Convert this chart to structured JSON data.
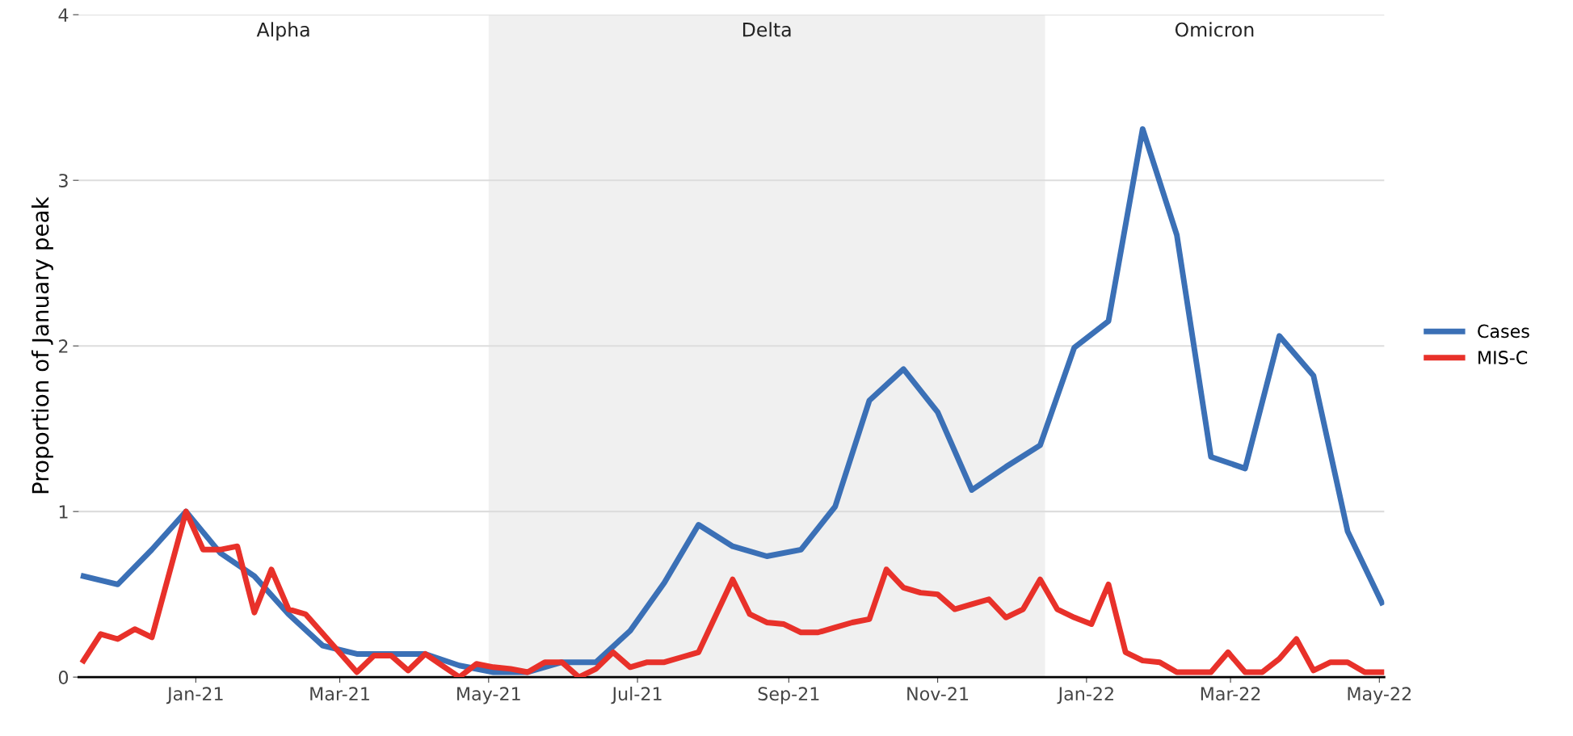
{
  "chart_data": {
    "type": "line",
    "ylabel": "Proportion of January peak",
    "xlim": [
      "2020-11-14",
      "2022-05-03"
    ],
    "xticks": [
      {
        "value": "2021-01-01",
        "label": "Jan-21"
      },
      {
        "value": "2021-03-01",
        "label": "Mar-21"
      },
      {
        "value": "2021-05-01",
        "label": "May-21"
      },
      {
        "value": "2021-07-01",
        "label": "Jul-21"
      },
      {
        "value": "2021-09-01",
        "label": "Sep-21"
      },
      {
        "value": "2021-11-01",
        "label": "Nov-21"
      },
      {
        "value": "2022-01-01",
        "label": "Jan-22"
      },
      {
        "value": "2022-03-01",
        "label": "Mar-22"
      },
      {
        "value": "2022-05-01",
        "label": "May-22"
      }
    ],
    "ylim": [
      0,
      4
    ],
    "yticks": [
      0,
      1,
      2,
      3,
      4
    ],
    "grid": "y",
    "legend": "right",
    "line_style": "solid",
    "marker": "none",
    "bands": [
      {
        "axis": "x",
        "from": "2021-05-01",
        "to": "2021-12-15",
        "label": "Delta",
        "color": "#f0f0f0"
      }
    ],
    "annotations": [
      "Alpha",
      "Omicron"
    ],
    "series": [
      {
        "name": "Cases",
        "color": "#3b70b6",
        "x": [
          "2020-11-16",
          "2020-11-30",
          "2020-12-14",
          "2020-12-28",
          "2021-01-11",
          "2021-01-25",
          "2021-02-08",
          "2021-02-22",
          "2021-03-08",
          "2021-03-22",
          "2021-04-05",
          "2021-04-19",
          "2021-05-03",
          "2021-05-17",
          "2021-05-31",
          "2021-06-14",
          "2021-06-28",
          "2021-07-12",
          "2021-07-26",
          "2021-08-09",
          "2021-08-23",
          "2021-09-06",
          "2021-09-20",
          "2021-10-04",
          "2021-10-18",
          "2021-11-01",
          "2021-11-15",
          "2021-11-29",
          "2021-12-13",
          "2021-12-27",
          "2022-01-10",
          "2022-01-24",
          "2022-02-07",
          "2022-02-21",
          "2022-03-07",
          "2022-03-21",
          "2022-04-04",
          "2022-04-18",
          "2022-05-02"
        ],
        "values": [
          0.61,
          0.56,
          0.77,
          1.0,
          0.75,
          0.61,
          0.38,
          0.19,
          0.14,
          0.14,
          0.14,
          0.07,
          0.03,
          0.03,
          0.09,
          0.09,
          0.28,
          0.57,
          0.92,
          0.79,
          0.73,
          0.77,
          1.03,
          1.67,
          1.86,
          1.6,
          1.13,
          1.27,
          1.4,
          1.99,
          2.15,
          3.31,
          2.67,
          1.33,
          1.26,
          2.06,
          1.82,
          0.88,
          0.45
        ]
      },
      {
        "name": "MIS-C",
        "color": "#e8312a",
        "x": [
          "2020-11-16",
          "2020-11-23",
          "2020-11-30",
          "2020-12-07",
          "2020-12-14",
          "2020-12-28",
          "2021-01-04",
          "2021-01-11",
          "2021-01-18",
          "2021-01-25",
          "2021-02-01",
          "2021-02-08",
          "2021-02-15",
          "2021-03-08",
          "2021-03-15",
          "2021-03-22",
          "2021-03-29",
          "2021-04-05",
          "2021-04-12",
          "2021-04-19",
          "2021-04-26",
          "2021-05-03",
          "2021-05-10",
          "2021-05-17",
          "2021-05-24",
          "2021-05-31",
          "2021-06-07",
          "2021-06-14",
          "2021-06-21",
          "2021-06-28",
          "2021-07-05",
          "2021-07-12",
          "2021-07-19",
          "2021-07-26",
          "2021-08-09",
          "2021-08-16",
          "2021-08-23",
          "2021-08-30",
          "2021-09-06",
          "2021-09-13",
          "2021-09-20",
          "2021-09-27",
          "2021-10-04",
          "2021-10-11",
          "2021-10-18",
          "2021-10-25",
          "2021-11-01",
          "2021-11-08",
          "2021-11-15",
          "2021-11-22",
          "2021-11-29",
          "2021-12-06",
          "2021-12-13",
          "2021-12-20",
          "2021-12-27",
          "2022-01-03",
          "2022-01-10",
          "2022-01-17",
          "2022-01-24",
          "2022-01-31",
          "2022-02-07",
          "2022-02-21",
          "2022-02-28",
          "2022-03-07",
          "2022-03-14",
          "2022-03-21",
          "2022-03-28",
          "2022-04-04",
          "2022-04-11",
          "2022-04-18",
          "2022-04-25",
          "2022-05-02"
        ],
        "values": [
          0.1,
          0.26,
          0.23,
          0.29,
          0.24,
          1.0,
          0.77,
          0.77,
          0.79,
          0.39,
          0.65,
          0.41,
          0.38,
          0.03,
          0.13,
          0.13,
          0.04,
          0.14,
          0.07,
          0.0,
          0.08,
          0.06,
          0.05,
          0.03,
          0.09,
          0.09,
          0.0,
          0.05,
          0.15,
          0.06,
          0.09,
          0.09,
          0.12,
          0.15,
          0.59,
          0.38,
          0.33,
          0.32,
          0.27,
          0.27,
          0.3,
          0.33,
          0.35,
          0.65,
          0.54,
          0.51,
          0.5,
          0.41,
          0.44,
          0.47,
          0.36,
          0.41,
          0.59,
          0.41,
          0.36,
          0.32,
          0.56,
          0.15,
          0.1,
          0.09,
          0.03,
          0.03,
          0.15,
          0.03,
          0.03,
          0.11,
          0.23,
          0.04,
          0.09,
          0.09,
          0.03,
          0.03
        ]
      }
    ]
  }
}
